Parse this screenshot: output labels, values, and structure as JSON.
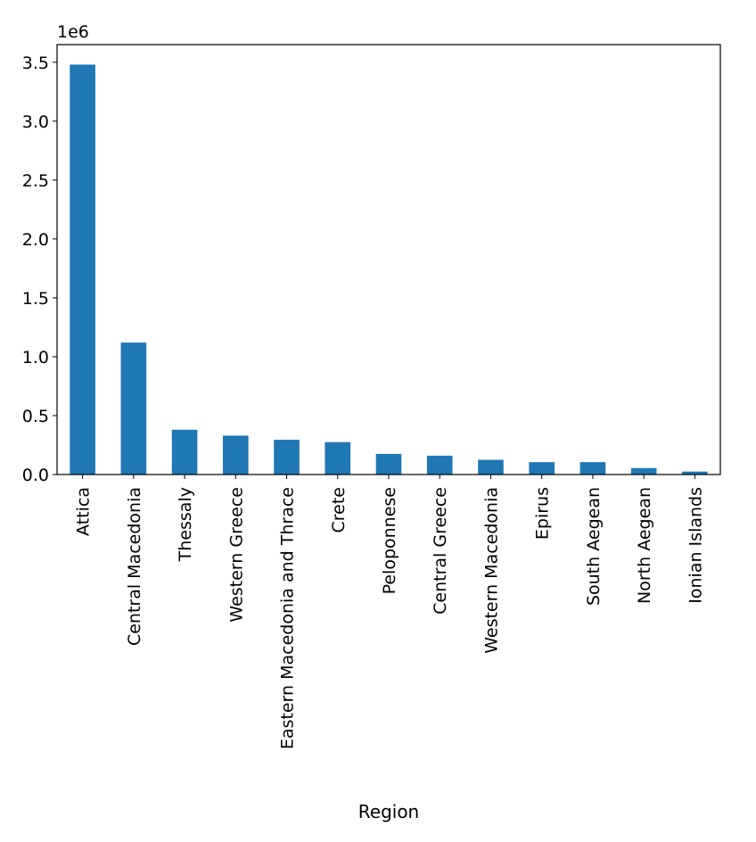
{
  "chart_data": {
    "type": "bar",
    "title": "",
    "xlabel": "Region",
    "ylabel": "",
    "y_scale_offset": "1e6",
    "ylim": [
      0,
      3.65
    ],
    "yticks": [
      0.0,
      0.5,
      1.0,
      1.5,
      2.0,
      2.5,
      3.0,
      3.5
    ],
    "ytick_labels": [
      "0.0",
      "0.5",
      "1.0",
      "1.5",
      "2.0",
      "2.5",
      "3.0",
      "3.5"
    ],
    "grid": false,
    "legend": "none",
    "bar_color": "#1f77b4",
    "categories": [
      "Attica",
      "Central Macedonia",
      "Thessaly",
      "Western Greece",
      "Eastern Macedonia and Thrace",
      "Crete",
      "Peloponnese",
      "Central Greece",
      "Western Macedonia",
      "Epirus",
      "South Aegean",
      "North Aegean",
      "Ionian Islands"
    ],
    "values": [
      3.48,
      1.12,
      0.38,
      0.33,
      0.295,
      0.275,
      0.175,
      0.16,
      0.125,
      0.105,
      0.105,
      0.055,
      0.025
    ]
  }
}
